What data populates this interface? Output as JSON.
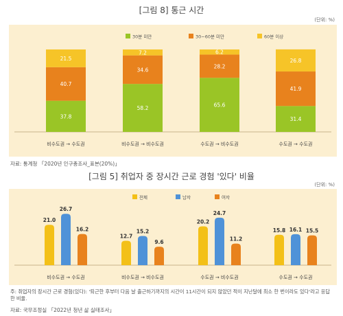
{
  "chart_data": [
    {
      "type": "bar",
      "stacked": true,
      "title": "[그림 8] 통근 시간",
      "unit": "(단위: %)",
      "categories": [
        "비수도권 → 수도권",
        "비수도권 → 비수도권",
        "수도권 → 비수도권",
        "수도권 → 수도권"
      ],
      "series": [
        {
          "name": "30분 미만",
          "color": "#9ac526",
          "values": [
            37.8,
            58.2,
            65.6,
            31.4
          ]
        },
        {
          "name": "30~60분 미만",
          "color": "#e8821d",
          "values": [
            40.7,
            34.6,
            28.2,
            41.9
          ]
        },
        {
          "name": "60분 이상",
          "color": "#f6c428",
          "values": [
            21.5,
            7.2,
            6.2,
            26.8
          ]
        }
      ],
      "ylim": [
        0,
        100
      ],
      "legend": "top-center",
      "source": "자료: 통계청 「2020년 인구총조사_표본(20%)」"
    },
    {
      "type": "bar",
      "title": "[그림 5] 취업자 중 장시간 근로 경험 '있다' 비율",
      "unit": "(단위: %)",
      "categories": [
        "비수도권 → 수도권",
        "비수도권 → 비수도권",
        "수도권 → 비수도권",
        "수도권 → 수도권"
      ],
      "series": [
        {
          "name": "전체",
          "color": "#f3c018",
          "values": [
            21.0,
            12.7,
            20.2,
            15.8
          ]
        },
        {
          "name": "남자",
          "color": "#4f92d8",
          "values": [
            26.7,
            15.2,
            24.7,
            16.1
          ]
        },
        {
          "name": "여자",
          "color": "#e8821d",
          "values": [
            16.2,
            9.6,
            11.2,
            15.5
          ]
        }
      ],
      "ylim": [
        0,
        30
      ],
      "legend": "top-center",
      "note": "주: 취업자의 장시간 근로 경험(있다): '퇴근한 후부터 다음 날 출근하기까지의 시간이 11시간이 되지 않았던 적이 지난달에 최소 한 번이라도 있다'라고 응답한 비율.",
      "source": "자료: 국무조정실 「2022년 청년 삶 실태조사」"
    }
  ]
}
